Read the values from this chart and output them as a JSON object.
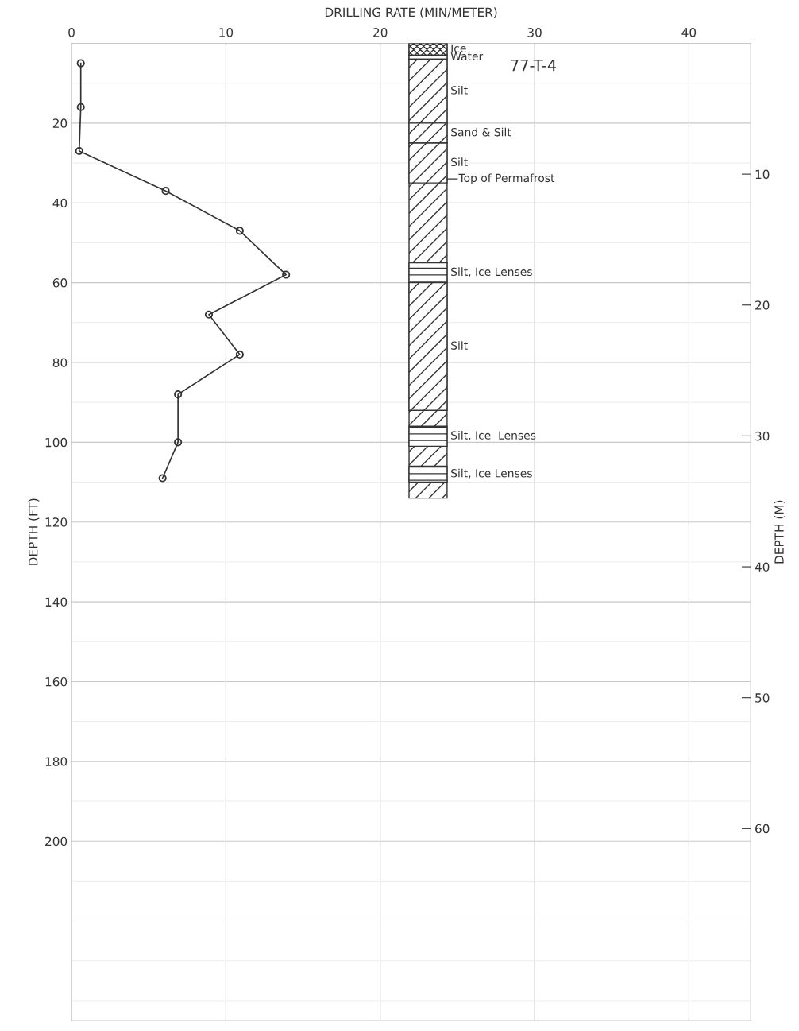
{
  "chart_data": {
    "type": "line",
    "title": "77-T-4",
    "xlabel": "DRILLING RATE (MIN/METER)",
    "ylabel": "DEPTH (FT)",
    "y2label": "DEPTH (M)",
    "x": [
      0.6,
      0.6,
      0.5,
      6.1,
      10.9,
      13.9,
      8.9,
      10.9,
      6.9,
      6.9,
      5.9
    ],
    "series": [
      {
        "color": "#333333",
        "values": [
          5,
          16,
          27,
          37,
          47,
          58,
          68,
          78,
          88,
          100,
          109
        ]
      }
    ],
    "xlim": [
      0,
      44
    ],
    "xticks": [
      0,
      10,
      20,
      30,
      40
    ],
    "ylim": [
      245,
      0
    ],
    "yticks": [
      20,
      40,
      60,
      80,
      100,
      120,
      140,
      160,
      180,
      200
    ],
    "y2lim": [
      74.68,
      0
    ],
    "y2ticks": [
      10,
      20,
      30,
      40,
      50,
      60
    ],
    "bands": [
      {
        "axis": "y",
        "from": 0,
        "to": 114
      },
      {
        "axis": "y",
        "from": 0,
        "to": 3,
        "label": "Ice"
      },
      {
        "axis": "y",
        "from": 3,
        "to": 4,
        "label": "Water"
      },
      {
        "axis": "y",
        "from": 4,
        "to": 20,
        "label": "Silt"
      },
      {
        "axis": "y",
        "from": 20,
        "to": 25,
        "label": "Sand & Silt"
      },
      {
        "axis": "y",
        "from": 25,
        "to": 35,
        "label": "Silt"
      },
      {
        "axis": "y",
        "from": 55,
        "to": 60,
        "label": "Silt, Ice Lenses"
      },
      {
        "axis": "y",
        "from": 60,
        "to": 92,
        "label": "Silt"
      },
      {
        "axis": "y",
        "from": 96,
        "to": 101,
        "label": "Silt, Ice  Lenses"
      },
      {
        "axis": "y",
        "from": 106,
        "to": 110,
        "label": "Silt, Ice Lenses"
      }
    ],
    "ref_lines": [
      {
        "axis": "y",
        "value": 34,
        "label": "Top of Permafrost"
      }
    ],
    "grid": true,
    "marker": "circle",
    "line_style": "solid"
  }
}
